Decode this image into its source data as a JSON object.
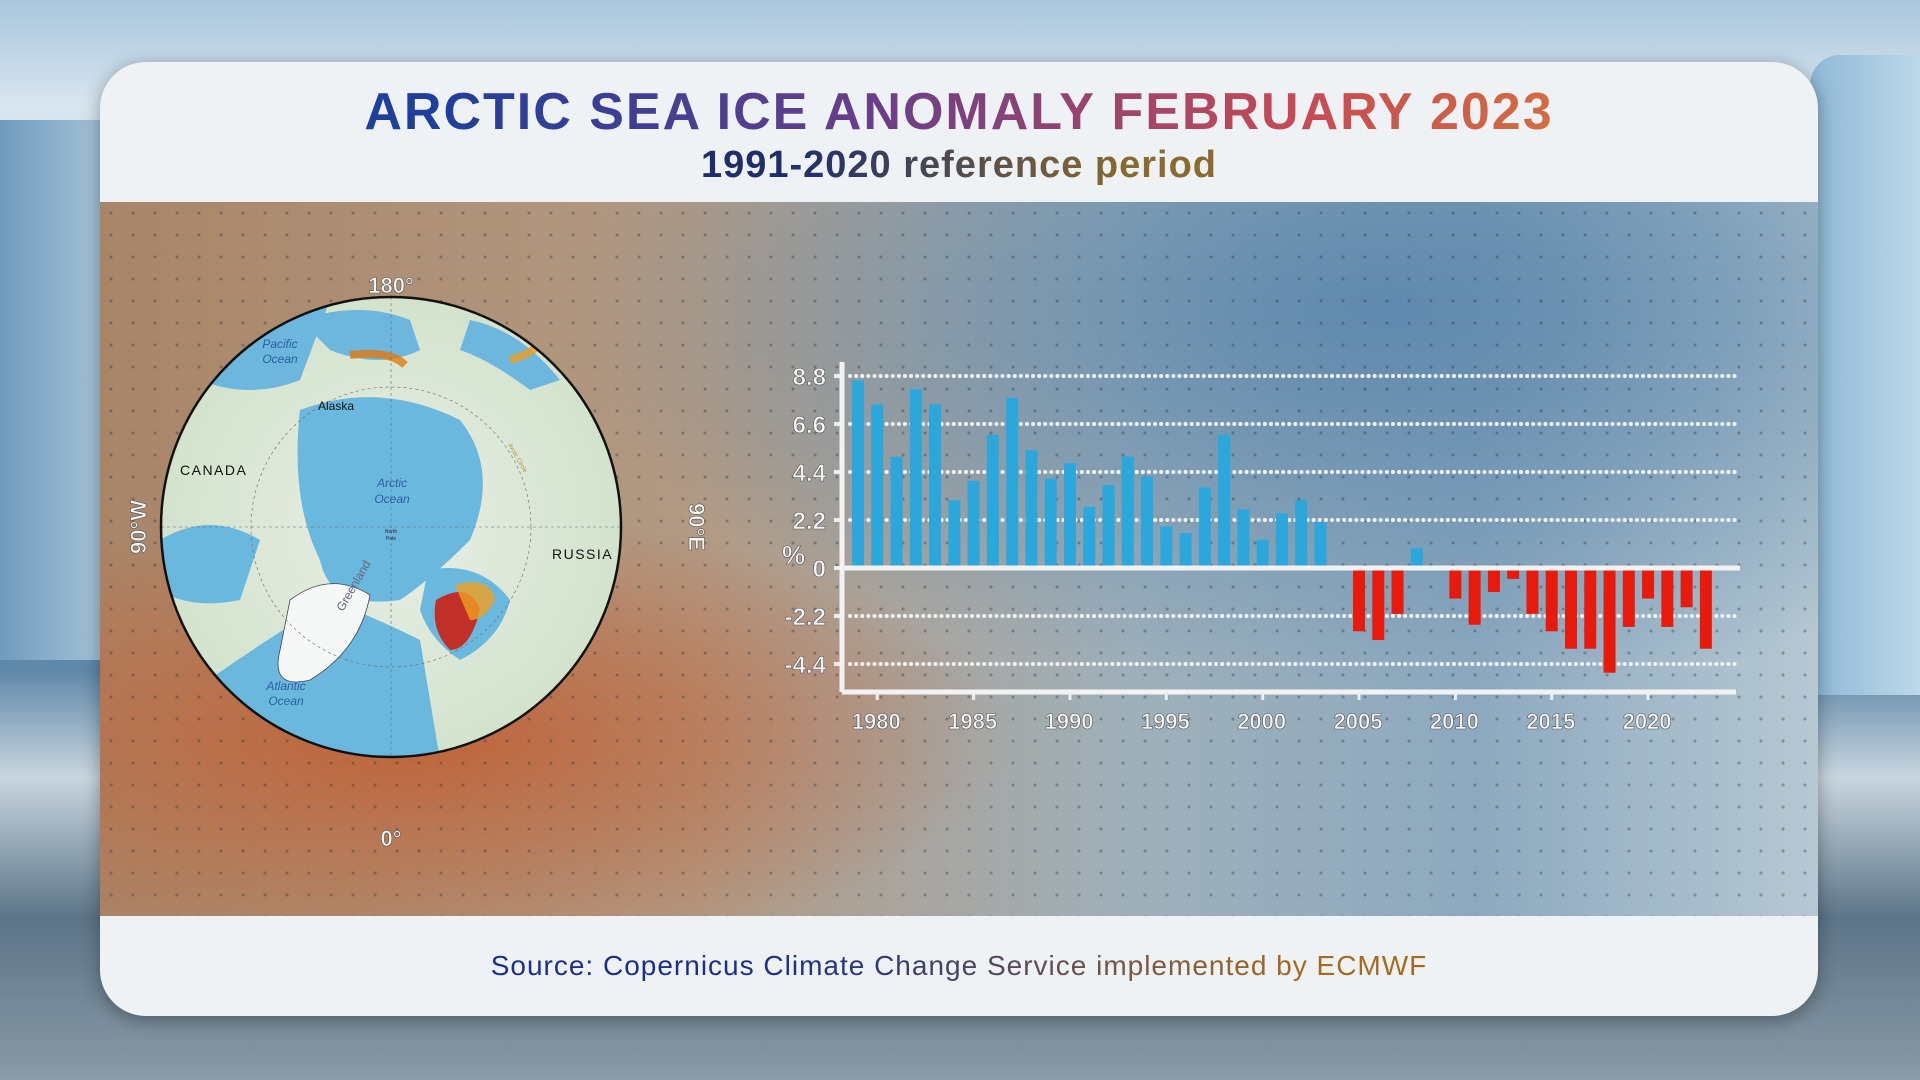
{
  "title": "ARCTIC SEA ICE ANOMALY FEBRUARY 2023",
  "subtitle": "1991-2020 reference period",
  "footer": "Source: Copernicus Climate Change Service implemented by ECMWF",
  "map": {
    "compass": {
      "top": "180°",
      "bottom": "0°",
      "left": "90°W",
      "right": "90°E"
    },
    "labels": {
      "pacific1": "Pacific",
      "pacific2": "Ocean",
      "alaska": "Alaska",
      "canada": "CANADA",
      "arctic1": "Arctic",
      "arctic2": "Ocean",
      "pole1": "North",
      "pole2": "Pole",
      "russia": "RUSSIA",
      "greenland": "Greenland",
      "atlantic1": "Atlantic",
      "atlantic2": "Ocean",
      "circle": "Arctic Circle"
    }
  },
  "chart_data": {
    "type": "bar",
    "title": "",
    "ylabel": "%",
    "xlabel": "",
    "ylim": [
      -5.2,
      8.8
    ],
    "yticks": [
      8.8,
      6.6,
      4.4,
      2.2,
      0,
      -2.2,
      -4.4
    ],
    "ytick_labels": [
      "8.8",
      "6.6",
      "4.4",
      "2.2",
      "0",
      "-2.2",
      "-4.4"
    ],
    "xticks": [
      1980,
      1985,
      1990,
      1995,
      2000,
      2005,
      2010,
      2015,
      2020
    ],
    "xtick_labels": [
      "1980",
      "1985",
      "1990",
      "1995",
      "2000",
      "2005",
      "2010",
      "2015",
      "2020"
    ],
    "grid": true,
    "colors": {
      "positive": "#2ba7dc",
      "negative": "#e81a0c"
    },
    "x": [
      1979,
      1980,
      1981,
      1982,
      1983,
      1984,
      1985,
      1986,
      1987,
      1988,
      1989,
      1990,
      1991,
      1992,
      1993,
      1994,
      1995,
      1996,
      1997,
      1998,
      1999,
      2000,
      2001,
      2002,
      2003,
      2004,
      2005,
      2006,
      2007,
      2008,
      2009,
      2010,
      2011,
      2012,
      2013,
      2014,
      2015,
      2016,
      2017,
      2018,
      2019,
      2020,
      2021,
      2022,
      2023
    ],
    "values": [
      8.6,
      7.5,
      5.1,
      8.2,
      7.5,
      3.1,
      4.0,
      6.1,
      7.8,
      5.4,
      4.1,
      4.8,
      2.8,
      3.8,
      5.1,
      4.2,
      1.9,
      1.6,
      3.7,
      6.1,
      2.7,
      1.3,
      2.5,
      3.1,
      2.1,
      0,
      -2.9,
      -3.3,
      -2.1,
      0.9,
      0,
      -1.4,
      -2.6,
      -1.1,
      -0.5,
      -2.1,
      -2.9,
      -3.7,
      -3.7,
      -4.8,
      -2.7,
      -1.4,
      -2.7,
      -1.8,
      -3.7
    ]
  }
}
